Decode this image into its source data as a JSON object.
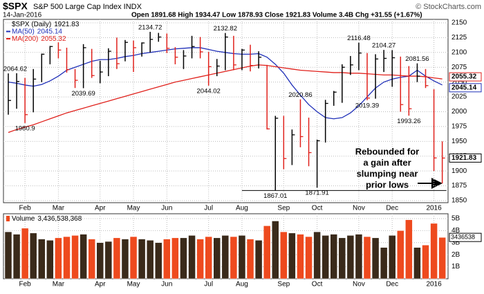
{
  "chart_data": [
    {
      "type": "ohlc",
      "title": "$SPX",
      "subtitle": "S&P 500 Large Cap Index INDX",
      "watermark": "© StockCharts.com",
      "date": "14-Jan-2016",
      "quote": "Open 1891.68  High 1934.47  Low 1878.93  Close 1921.83  Volume 3.4B  Chg +31.55 (+1.67%)",
      "name": "$SPX (Daily)",
      "categories": [
        null,
        null,
        "Feb",
        null,
        null,
        null,
        "Mar",
        null,
        null,
        null,
        null,
        "Apr",
        null,
        null,
        null,
        "May",
        null,
        null,
        null,
        "Jun",
        null,
        null,
        null,
        null,
        "Jul",
        null,
        null,
        null,
        "Aug",
        null,
        null,
        null,
        null,
        "Sep",
        null,
        null,
        null,
        "Oct",
        null,
        null,
        null,
        null,
        "Nov",
        null,
        null,
        null,
        "Dec",
        null,
        null,
        null,
        null,
        "2016",
        null
      ],
      "high": [
        2064.62,
        2065,
        2057,
        2072,
        2098,
        2111,
        2117,
        2108,
        2072,
        2114,
        2106,
        2086,
        2107,
        2125,
        2121,
        2120,
        2117,
        2134.72,
        2133,
        2132,
        2109,
        2104,
        2128,
        2126,
        2101,
        2089,
        2132.82,
        2128,
        2106,
        2113,
        2102,
        2079,
        1993,
        1993,
        1970,
        2020.86,
        1990,
        1953,
        2020,
        2035,
        2080,
        2094,
        2116.48,
        2099,
        2097,
        2104.27,
        2104,
        2093,
        2077,
        2081.56,
        2072,
        2038,
        1950
      ],
      "low": [
        1995,
        2005,
        1980.9,
        1999,
        2050,
        2080,
        2090,
        2066,
        2040,
        2039.69,
        2057,
        2048,
        2060,
        2072,
        2085,
        2067,
        2093,
        2100,
        2118,
        2099,
        2080,
        2072,
        2090,
        2090,
        2044.02,
        2060,
        2070,
        2070,
        2070,
        2068,
        2073,
        1970,
        1867.01,
        1903,
        1910,
        1940,
        1908,
        1871.91,
        1948,
        2010,
        2015,
        2062,
        2070,
        2019.39,
        2022,
        2067,
        2042,
        2000,
        1993.26,
        2050,
        2040,
        1900,
        1878.93
      ],
      "close": [
        2019,
        2051,
        1995,
        2055,
        2097,
        2110,
        2104,
        2071,
        2053,
        2108,
        2061,
        2067,
        2102,
        2081,
        2117,
        2108,
        2116,
        2122,
        2126,
        2107,
        2092,
        2094,
        2110,
        2101,
        2076,
        2077,
        2126,
        2079,
        2104,
        2078,
        2092,
        1971,
        1989,
        1921,
        1961,
        1958,
        1931,
        1951,
        2014,
        2033,
        2075,
        2079,
        2099,
        2023,
        2089,
        2090,
        2091,
        2012,
        2005,
        2060,
        2044,
        1922,
        1921.83
      ],
      "up_color": "#000000",
      "down_color": "#e0201b",
      "series": [
        {
          "name": "MA(50)",
          "color": "#1f2fb8",
          "values": [
            2050,
            2048,
            2045,
            2043,
            2046,
            2052,
            2060,
            2070,
            2075,
            2080,
            2085,
            2088,
            2088,
            2090,
            2093,
            2095,
            2098,
            2100,
            2102,
            2104,
            2106,
            2107,
            2108,
            2108,
            2105,
            2102,
            2100,
            2098,
            2097,
            2097,
            2098,
            2092,
            2080,
            2065,
            2045,
            2028,
            2012,
            2000,
            1990,
            1988,
            1990,
            1998,
            2010,
            2025,
            2040,
            2050,
            2055,
            2058,
            2060,
            2070,
            2060,
            2052,
            2045.14
          ]
        },
        {
          "name": "MA(200)",
          "color": "#e0201b",
          "values": [
            1965,
            1970,
            1974,
            1978,
            1983,
            1988,
            1993,
            1998,
            2002,
            2006,
            2010,
            2014,
            2018,
            2022,
            2026,
            2030,
            2034,
            2038,
            2042,
            2046,
            2050,
            2053,
            2056,
            2059,
            2062,
            2065,
            2068,
            2071,
            2074,
            2077,
            2079,
            2078,
            2076,
            2074,
            2072,
            2070,
            2069,
            2068,
            2067,
            2066,
            2066,
            2065,
            2065,
            2064,
            2063,
            2062,
            2062,
            2061,
            2060,
            2060,
            2059,
            2057,
            2055.32
          ]
        }
      ],
      "annotation": [
        "Rebounded for",
        "a gain after",
        "slumping near",
        "prior lows"
      ],
      "ylim": [
        1846.5,
        2155.8
      ],
      "yticks": [
        1850,
        1875,
        1900,
        1925,
        1950,
        1975,
        2000,
        2025,
        2050,
        2075,
        2100,
        2125,
        2150
      ],
      "grid": true
    },
    {
      "type": "bar",
      "title": "Volume",
      "value_label": "3,436,538,368",
      "tag": "3436538",
      "categories": [
        null,
        null,
        "Feb",
        null,
        null,
        null,
        "Mar",
        null,
        null,
        null,
        null,
        "Apr",
        null,
        null,
        null,
        "May",
        null,
        null,
        null,
        "Jun",
        null,
        null,
        null,
        null,
        "Jul",
        null,
        null,
        null,
        "Aug",
        null,
        null,
        null,
        null,
        "Sep",
        null,
        null,
        null,
        "Oct",
        null,
        null,
        null,
        null,
        "Nov",
        null,
        null,
        null,
        "Dec",
        null,
        null,
        null,
        null,
        "2016",
        null
      ],
      "values": [
        3.9,
        3.7,
        4.2,
        3.8,
        3.3,
        3.2,
        3.4,
        3.5,
        3.6,
        3.7,
        3.3,
        3.0,
        3.1,
        3.4,
        3.3,
        3.5,
        3.3,
        3.2,
        3.0,
        3.3,
        3.4,
        3.4,
        3.6,
        3.3,
        3.5,
        3.4,
        3.6,
        3.5,
        3.6,
        3.3,
        3.2,
        4.4,
        4.8,
        3.9,
        3.8,
        3.7,
        3.5,
        3.9,
        3.6,
        3.7,
        3.4,
        3.6,
        3.7,
        3.5,
        3.4,
        2.6,
        3.6,
        4.0,
        4.9,
        2.6,
        2.8,
        4.6,
        3.436538368
      ],
      "up_color": "#3a2a1a",
      "down_color": "#ee4a1e",
      "ylim": [
        0,
        5.4
      ],
      "yticks": [
        {
          "value": 1,
          "label": "1B"
        },
        {
          "value": 2,
          "label": "2B"
        },
        {
          "value": 3,
          "label": "3B"
        },
        {
          "value": 4,
          "label": "4B"
        },
        {
          "value": 5,
          "label": "5B"
        }
      ],
      "grid": true
    }
  ]
}
